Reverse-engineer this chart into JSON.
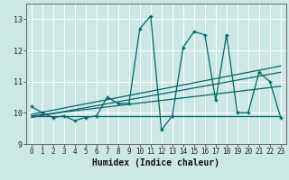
{
  "xlabel": "Humidex (Indice chaleur)",
  "bg_color": "#cce8e4",
  "grid_color": "#b0d8d4",
  "line_color": "#006666",
  "xlim": [
    -0.5,
    23.5
  ],
  "ylim": [
    9.0,
    13.5
  ],
  "xticks": [
    0,
    1,
    2,
    3,
    4,
    5,
    6,
    7,
    8,
    9,
    10,
    11,
    12,
    13,
    14,
    15,
    16,
    17,
    18,
    19,
    20,
    21,
    22,
    23
  ],
  "yticks": [
    9,
    10,
    11,
    12,
    13
  ],
  "series1_x": [
    0,
    1,
    2,
    3,
    4,
    5,
    6,
    7,
    8,
    9,
    10,
    11,
    12,
    13,
    14,
    15,
    16,
    17,
    18,
    19,
    20,
    21,
    22,
    23
  ],
  "series1_y": [
    10.2,
    10.0,
    9.85,
    9.9,
    9.75,
    9.85,
    9.9,
    10.5,
    10.3,
    10.3,
    12.7,
    13.1,
    9.45,
    9.9,
    12.1,
    12.6,
    12.5,
    10.4,
    12.5,
    10.0,
    10.0,
    11.3,
    11.0,
    9.85
  ],
  "series2_x": [
    0,
    23
  ],
  "series2_y": [
    9.9,
    9.9
  ],
  "trend_lines": [
    {
      "x": [
        0,
        23
      ],
      "y": [
        9.9,
        10.85
      ]
    },
    {
      "x": [
        0,
        23
      ],
      "y": [
        9.85,
        11.3
      ]
    },
    {
      "x": [
        0,
        23
      ],
      "y": [
        9.95,
        11.5
      ]
    }
  ],
  "tick_fontsize": 5.5,
  "xlabel_fontsize": 7
}
